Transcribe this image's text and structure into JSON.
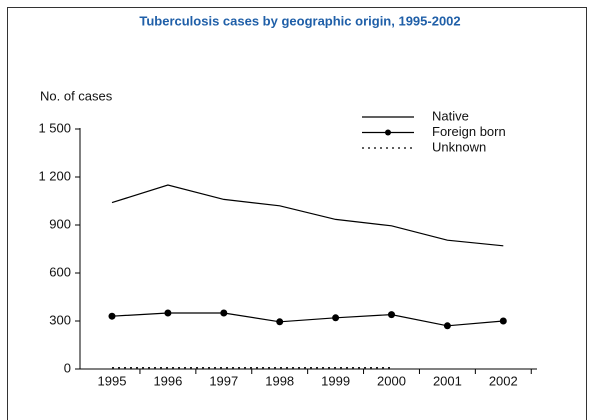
{
  "chart_data": {
    "type": "line",
    "title": "Tuberculosis cases by geographic origin, 1995-2002",
    "y_label": "No. of cases",
    "categories": [
      "1995",
      "1996",
      "1997",
      "1998",
      "1999",
      "2000",
      "2001",
      "2002"
    ],
    "series": [
      {
        "name": "Native",
        "color": "#000000",
        "style": "solid",
        "marker": false,
        "values": [
          1040,
          1150,
          1060,
          1020,
          935,
          895,
          805,
          770
        ]
      },
      {
        "name": "Foreign born",
        "color": "#000000",
        "style": "solid",
        "marker": true,
        "values": [
          330,
          350,
          350,
          295,
          320,
          340,
          270,
          300
        ]
      },
      {
        "name": "Unknown",
        "color": "#000000",
        "style": "dotted",
        "marker": false,
        "values": [
          8,
          8,
          8,
          8,
          8,
          8,
          null,
          null
        ]
      }
    ],
    "ylim": [
      0,
      1500
    ],
    "yticks": [
      0,
      300,
      600,
      900,
      {
        "value": 1200,
        "label": "1 200"
      },
      {
        "value": 1500,
        "label": "1 500"
      }
    ],
    "legend": "upper right"
  }
}
